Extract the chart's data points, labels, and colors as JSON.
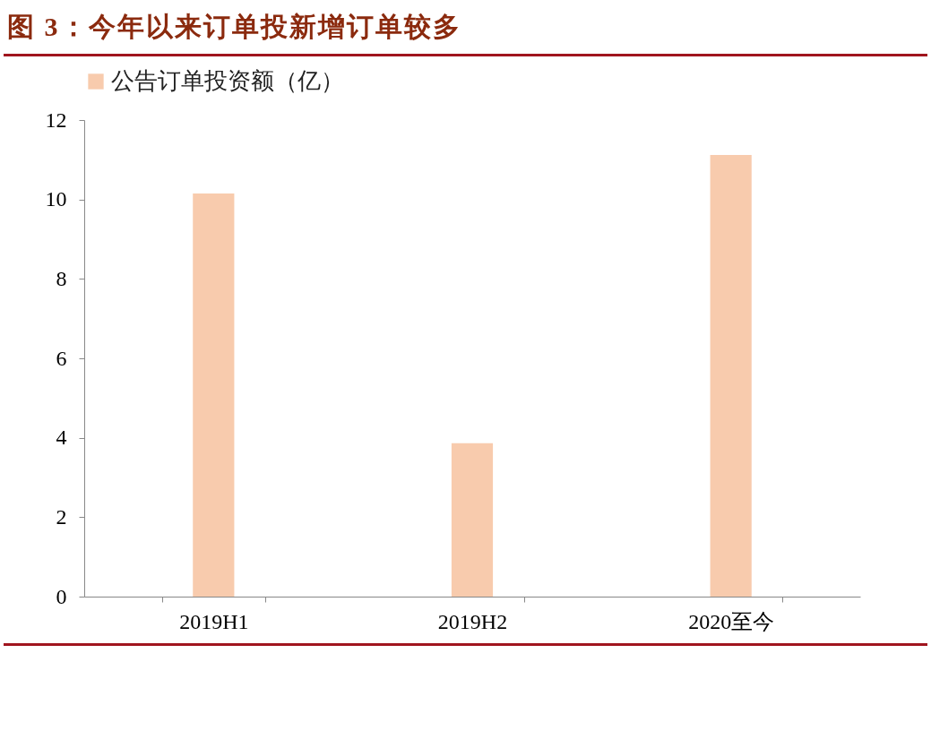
{
  "chart_data": {
    "type": "bar",
    "title": "图 3：今年以来订单投新增订单较多",
    "categories": [
      "2019H1",
      "2019H2",
      "2020至今"
    ],
    "series": [
      {
        "name": "公告订单投资额（亿）",
        "color": "#f8cbad",
        "values": [
          10.15,
          3.86,
          11.12
        ]
      }
    ],
    "ylim": [
      0,
      12
    ],
    "yticks": [
      0,
      2,
      4,
      6,
      8,
      10,
      12
    ],
    "grid": false,
    "legend": "top"
  }
}
